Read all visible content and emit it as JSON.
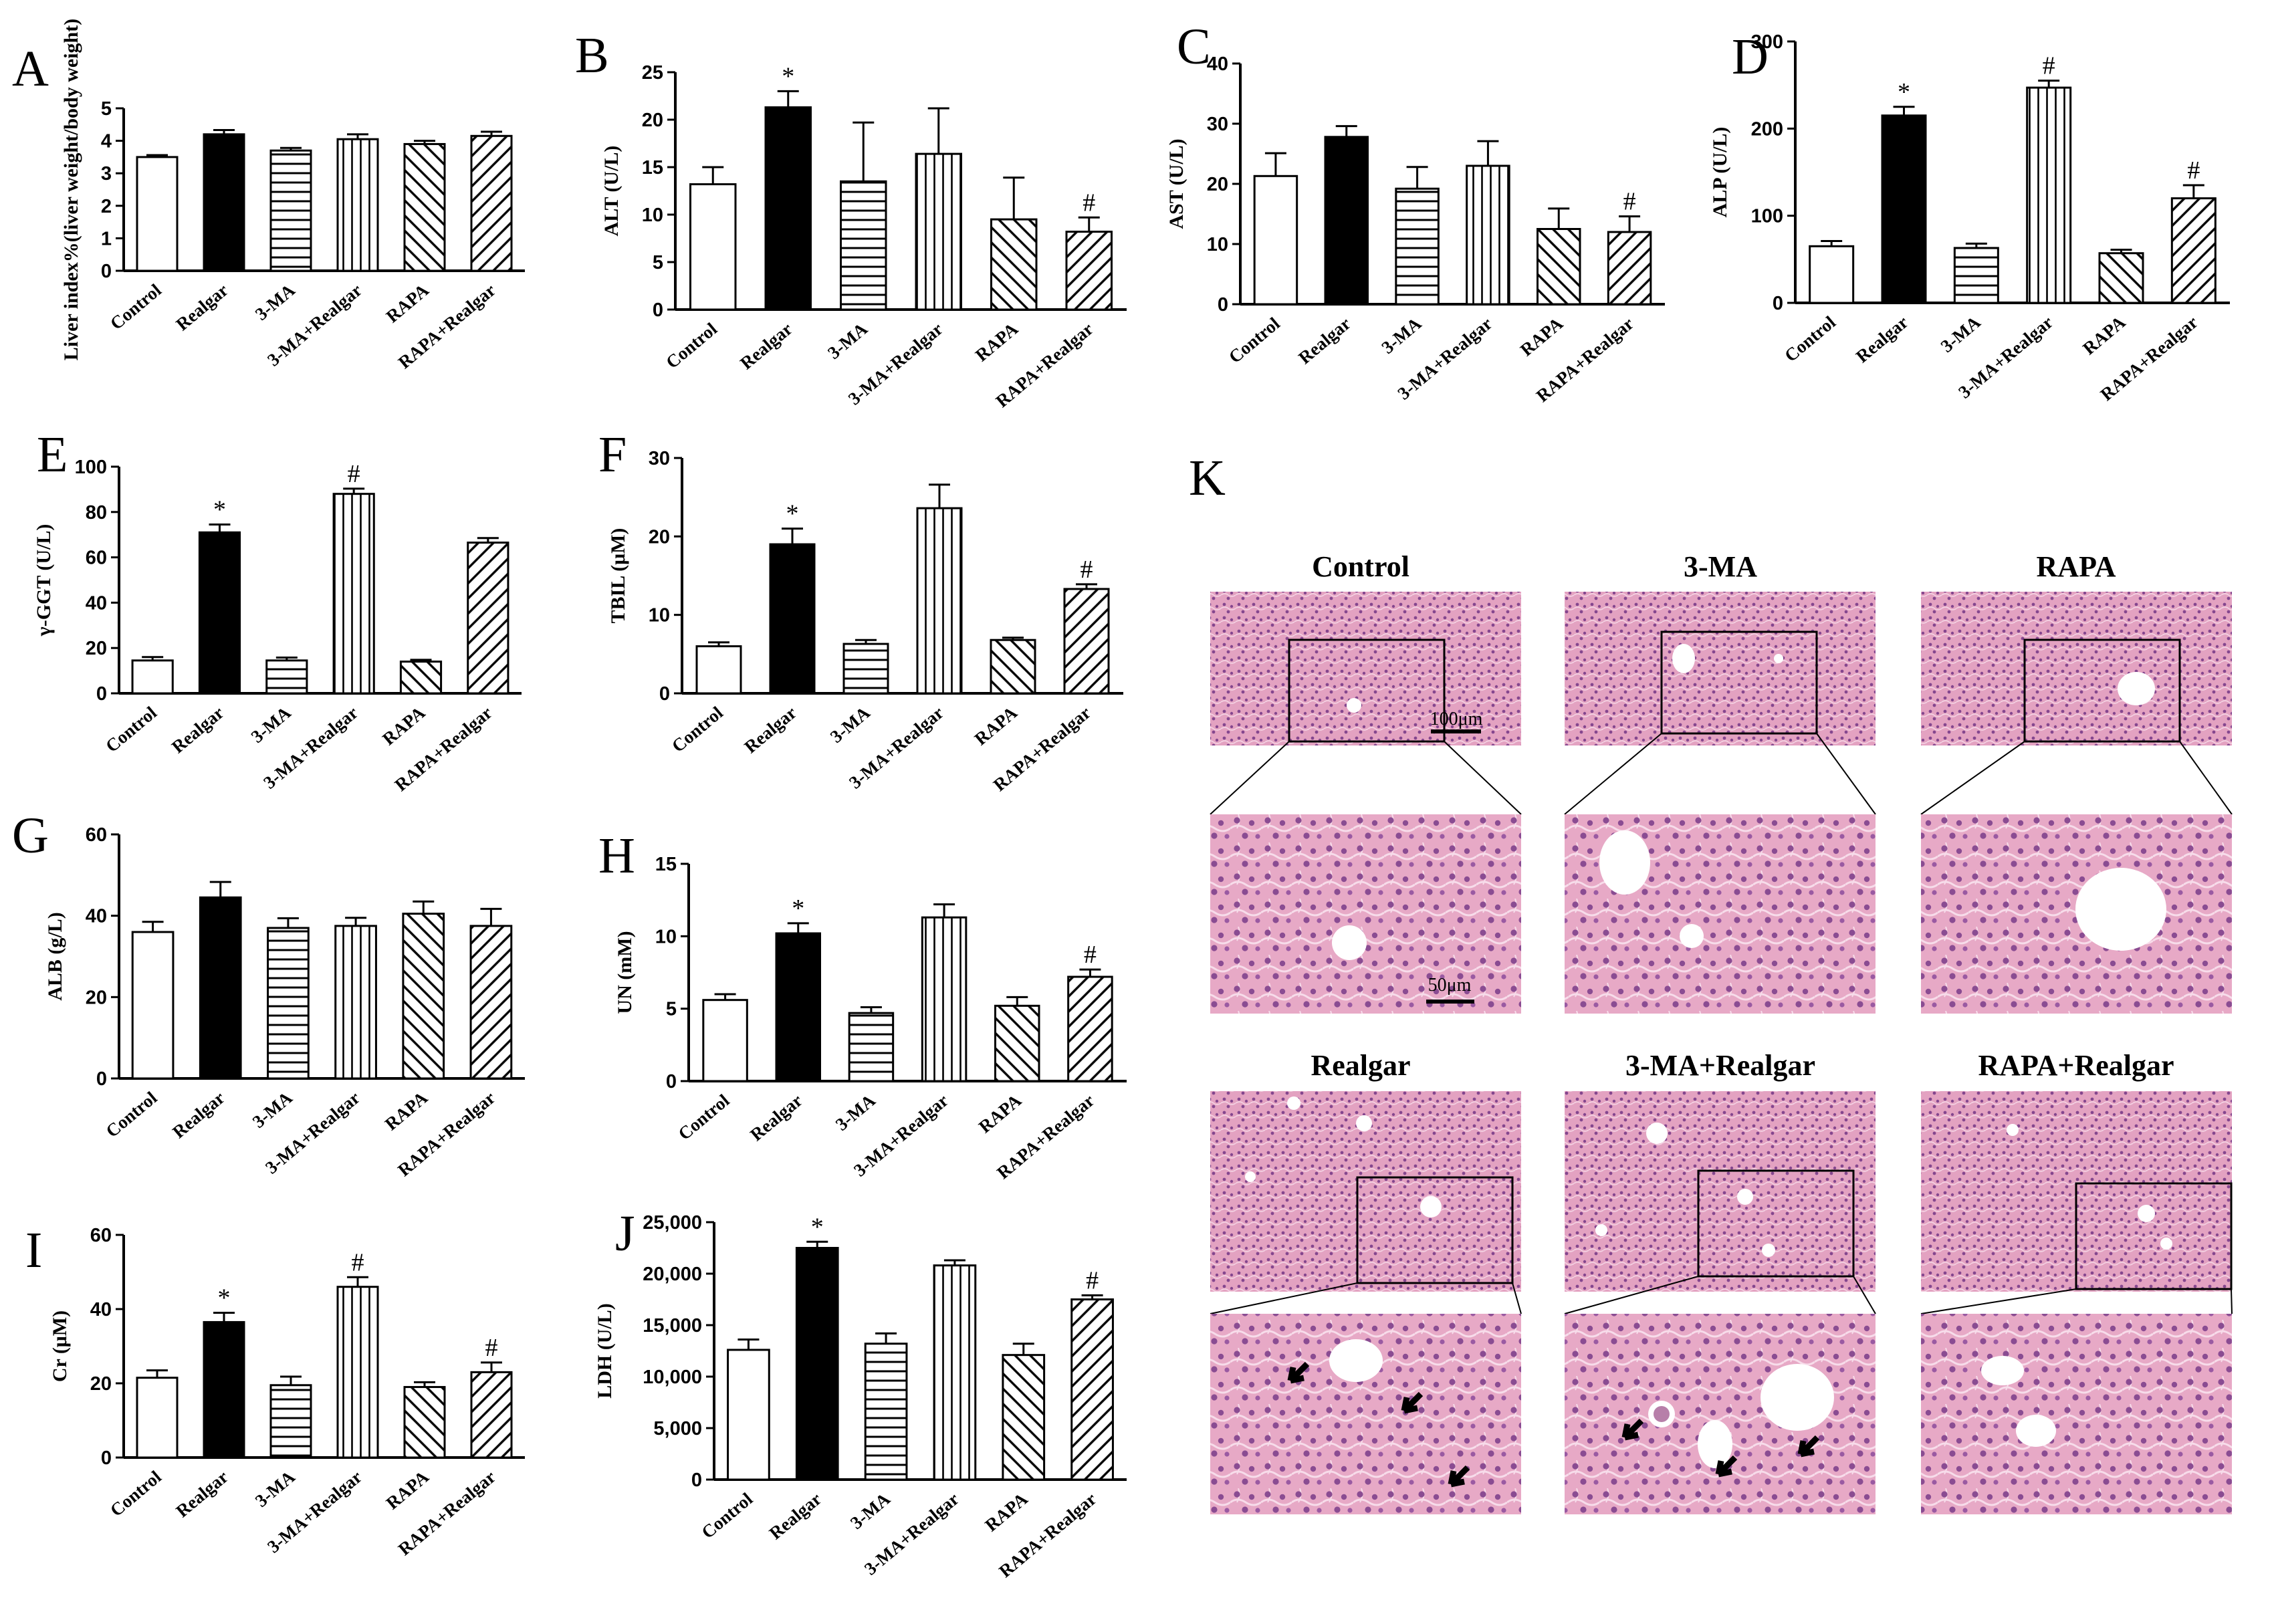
{
  "figure": {
    "panel_k_letter": "K",
    "scale_bar_low": "100μm",
    "scale_bar_high": "50μm",
    "micrograph_titles": [
      "Control",
      "3-MA",
      "RAPA",
      "Realgar",
      "3-MA+Realgar",
      "RAPA+Realgar"
    ]
  },
  "colors": {
    "axis": "#000000",
    "bar_fill": "#ffffff",
    "realgar_fill": "#000000",
    "tissue_pink": "#e7a9c6",
    "nuclei": "#8a4c92"
  },
  "patterns": [
    "none",
    "solid",
    "horizontal-lines",
    "vertical-lines",
    "diagonal-down",
    "diagonal-up"
  ],
  "chart_data": [
    {
      "letter": "A",
      "type": "bar",
      "ylabel": "Liver index%(liver weight/body weight)",
      "categories": [
        "Control",
        "Realgar",
        "3-MA",
        "3-MA+Realgar",
        "RAPA",
        "RAPA+Realgar"
      ],
      "values": [
        3.5,
        4.2,
        3.7,
        4.05,
        3.9,
        4.15
      ],
      "errors": [
        0.06,
        0.13,
        0.08,
        0.15,
        0.1,
        0.13
      ],
      "marks": [
        "",
        "",
        "",
        "",
        "",
        ""
      ],
      "ylim": [
        0,
        5
      ],
      "ticks": [
        "0",
        "1",
        "2",
        "3",
        "4",
        "5"
      ]
    },
    {
      "letter": "B",
      "type": "bar",
      "ylabel": "ALT (U/L)",
      "categories": [
        "Control",
        "Realgar",
        "3-MA",
        "3-MA+Realgar",
        "RAPA",
        "RAPA+Realgar"
      ],
      "values": [
        13.2,
        21.3,
        13.5,
        16.4,
        9.5,
        8.2
      ],
      "errors": [
        1.8,
        1.7,
        6.2,
        4.8,
        4.4,
        1.5
      ],
      "marks": [
        "",
        "*",
        "",
        "",
        "",
        "#"
      ],
      "ylim": [
        0,
        25
      ],
      "ticks": [
        "0",
        "5",
        "10",
        "15",
        "20",
        "25"
      ]
    },
    {
      "letter": "C",
      "type": "bar",
      "ylabel": "AST (U/L)",
      "categories": [
        "Control",
        "Realgar",
        "3-MA",
        "3-MA+Realgar",
        "RAPA",
        "RAPA+Realgar"
      ],
      "values": [
        21.3,
        27.8,
        19.2,
        23.0,
        12.5,
        12.0
      ],
      "errors": [
        3.8,
        1.8,
        3.6,
        4.1,
        3.4,
        2.6
      ],
      "marks": [
        "",
        "",
        "",
        "",
        "",
        "#"
      ],
      "ylim": [
        0,
        40
      ],
      "ticks": [
        "0",
        "10",
        "20",
        "30",
        "40"
      ]
    },
    {
      "letter": "D",
      "type": "bar",
      "ylabel": "ALP (U/L)",
      "categories": [
        "Control",
        "Realgar",
        "3-MA",
        "3-MA+Realgar",
        "RAPA",
        "RAPA+Realgar"
      ],
      "values": [
        65,
        215,
        63,
        247,
        57,
        120
      ],
      "errors": [
        6,
        10,
        5,
        8,
        4,
        15
      ],
      "marks": [
        "",
        "*",
        "",
        "#",
        "",
        "#"
      ],
      "ylim": [
        0,
        300
      ],
      "ticks": [
        "0",
        "100",
        "200",
        "300"
      ]
    },
    {
      "letter": "E",
      "type": "bar",
      "ylabel": "γ-GGT (U/L)",
      "categories": [
        "Control",
        "Realgar",
        "3-MA",
        "3-MA+Realgar",
        "RAPA",
        "RAPA+Realgar"
      ],
      "values": [
        14.5,
        71,
        14.5,
        88,
        14,
        66.5
      ],
      "errors": [
        1.5,
        3.5,
        1.3,
        2.3,
        0.8,
        2.0
      ],
      "marks": [
        "",
        "*",
        "",
        "#",
        "",
        ""
      ],
      "ylim": [
        0,
        100
      ],
      "ticks": [
        "0",
        "20",
        "40",
        "60",
        "80",
        "100"
      ]
    },
    {
      "letter": "F",
      "type": "bar",
      "ylabel": "TBIL (μM)",
      "categories": [
        "Control",
        "Realgar",
        "3-MA",
        "3-MA+Realgar",
        "RAPA",
        "RAPA+Realgar"
      ],
      "values": [
        6.0,
        19.0,
        6.3,
        23.6,
        6.8,
        13.3
      ],
      "errors": [
        0.5,
        2.0,
        0.5,
        3.0,
        0.3,
        0.6
      ],
      "marks": [
        "",
        "*",
        "",
        "",
        "",
        "#"
      ],
      "ylim": [
        0,
        30
      ],
      "ticks": [
        "0",
        "10",
        "20",
        "30"
      ]
    },
    {
      "letter": "G",
      "type": "bar",
      "ylabel": "ALB (g/L)",
      "categories": [
        "Control",
        "Realgar",
        "3-MA",
        "3-MA+Realgar",
        "RAPA",
        "RAPA+Realgar"
      ],
      "values": [
        36,
        44.5,
        37,
        37.5,
        40.5,
        37.5
      ],
      "errors": [
        2.5,
        3.8,
        2.4,
        2.0,
        3.0,
        4.2
      ],
      "marks": [
        "",
        "",
        "",
        "",
        "",
        ""
      ],
      "ylim": [
        0,
        60
      ],
      "ticks": [
        "0",
        "20",
        "40",
        "60"
      ]
    },
    {
      "letter": "H",
      "type": "bar",
      "ylabel": "UN (mM)",
      "categories": [
        "Control",
        "Realgar",
        "3-MA",
        "3-MA+Realgar",
        "RAPA",
        "RAPA+Realgar"
      ],
      "values": [
        5.6,
        10.2,
        4.7,
        11.3,
        5.2,
        7.2
      ],
      "errors": [
        0.4,
        0.7,
        0.4,
        0.9,
        0.6,
        0.5
      ],
      "marks": [
        "",
        "*",
        "",
        "",
        "",
        "#"
      ],
      "ylim": [
        0,
        15
      ],
      "ticks": [
        "0",
        "5",
        "10",
        "15"
      ]
    },
    {
      "letter": "I",
      "type": "bar",
      "ylabel": "Cr (μM)",
      "categories": [
        "Control",
        "Realgar",
        "3-MA",
        "3-MA+Realgar",
        "RAPA",
        "RAPA+Realgar"
      ],
      "values": [
        21.5,
        36.5,
        19.5,
        46,
        19,
        23
      ],
      "errors": [
        2.0,
        2.5,
        2.3,
        2.6,
        1.3,
        2.6
      ],
      "marks": [
        "",
        "*",
        "",
        "#",
        "",
        "#"
      ],
      "ylim": [
        0,
        60
      ],
      "ticks": [
        "0",
        "20",
        "40",
        "60"
      ]
    },
    {
      "letter": "J",
      "type": "bar",
      "ylabel": "LDH (U/L)",
      "categories": [
        "Control",
        "Realgar",
        "3-MA",
        "3-MA+Realgar",
        "RAPA",
        "RAPA+Realgar"
      ],
      "values": [
        12600,
        22500,
        13200,
        20800,
        12100,
        17500
      ],
      "errors": [
        1000,
        600,
        1000,
        500,
        1100,
        400
      ],
      "marks": [
        "",
        "*",
        "",
        "",
        "",
        "#"
      ],
      "ylim": [
        0,
        25000
      ],
      "ticks": [
        "0",
        "5,000",
        "10,000",
        "15,000",
        "20,000",
        "25,000"
      ]
    }
  ]
}
